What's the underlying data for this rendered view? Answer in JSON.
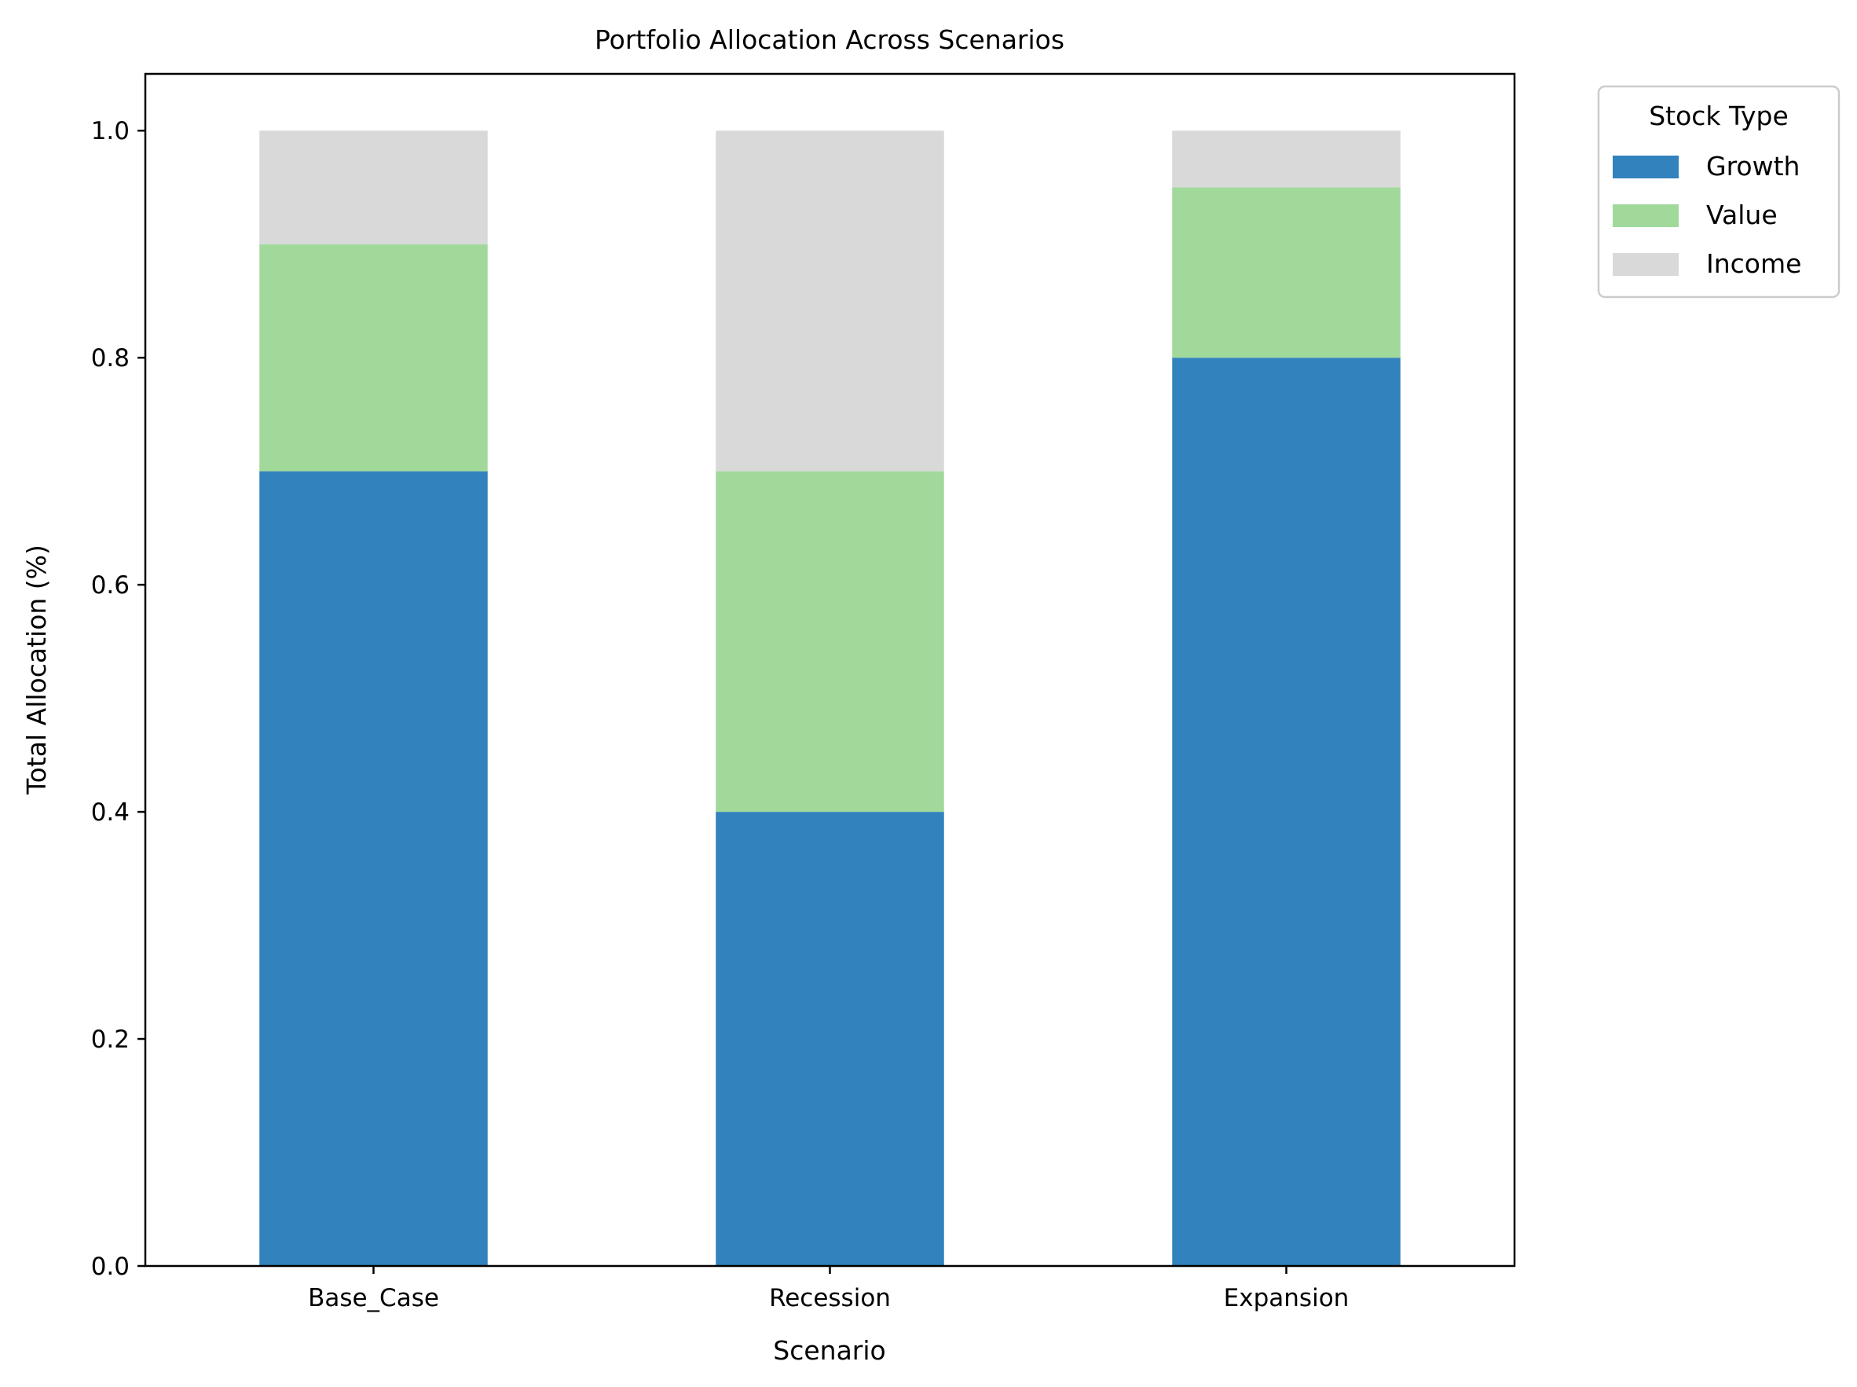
{
  "chart_data": {
    "type": "bar",
    "stacked": true,
    "title": "Portfolio Allocation Across Scenarios",
    "xlabel": "Scenario",
    "ylabel": "Total Allocation (%)",
    "categories": [
      "Base_Case",
      "Recession",
      "Expansion"
    ],
    "series": [
      {
        "name": "Growth",
        "values": [
          0.7,
          0.4,
          0.8
        ],
        "color": "#3182bd"
      },
      {
        "name": "Value",
        "values": [
          0.2,
          0.3,
          0.15
        ],
        "color": "#a1d99b"
      },
      {
        "name": "Income",
        "values": [
          0.1,
          0.3,
          0.05
        ],
        "color": "#d9d9d9"
      }
    ],
    "ylim": [
      0,
      1.05
    ],
    "yticks": [
      "0.0",
      "0.2",
      "0.4",
      "0.6",
      "0.8",
      "1.0"
    ],
    "grid": false,
    "legend": {
      "title": "Stock Type",
      "placement": "outside-top-right"
    }
  }
}
